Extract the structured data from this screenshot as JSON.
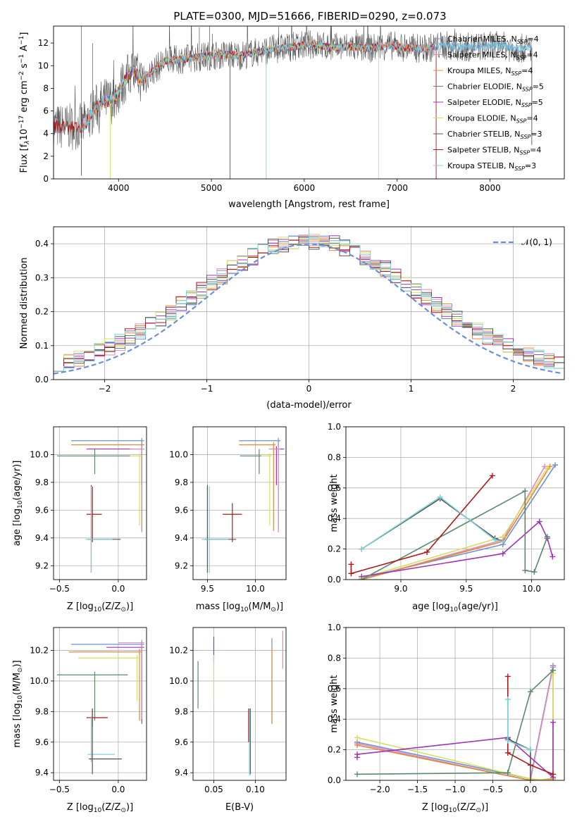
{
  "figure": {
    "title": "PLATE=0300, MJD=51666, FIBERID=0290, z=0.073"
  },
  "chart_data": [
    {
      "id": "spectrum",
      "type": "line",
      "title": "PLATE=0300, MJD=51666, FIBERID=0290, z=0.073",
      "xlabel": "wavelength [Angstrom, rest frame]",
      "ylabel_parts": [
        "Flux [f",
        "λ",
        "10",
        "−17",
        " erg cm",
        "−2",
        " s",
        "−1",
        " A",
        "−1",
        "]"
      ],
      "xlim": [
        3300,
        8800
      ],
      "ylim": [
        0,
        13.5
      ],
      "xticks": [
        4000,
        5000,
        6000,
        7000,
        8000
      ],
      "yticks": [
        0,
        2,
        4,
        6,
        8,
        10,
        12
      ],
      "grid": false,
      "legend_position": "right",
      "continuum": {
        "x": [
          3580,
          3650,
          3750,
          3850,
          3950,
          4050,
          4150,
          4250,
          4350,
          4500,
          4700,
          4900,
          5100,
          5300,
          5500,
          5700,
          5900,
          6100,
          6300,
          6500,
          6700,
          6900,
          7100,
          7300,
          7500,
          7700,
          7900,
          8100,
          8300,
          8450
        ],
        "y": [
          4.6,
          4.9,
          6.3,
          6.9,
          6.9,
          8.5,
          9.6,
          8.7,
          9.4,
          10.4,
          10.6,
          10.8,
          11.0,
          10.9,
          11.2,
          11.5,
          11.7,
          11.9,
          11.6,
          11.7,
          11.5,
          11.8,
          11.6,
          11.5,
          11.8,
          11.6,
          11.7,
          11.8,
          11.5,
          11.6
        ]
      },
      "series": [
        {
          "legend": [
            "Chabrier MILES, N",
            "SSP",
            "=4"
          ],
          "color": "#6b8fd6",
          "x_range": [
            3600,
            8450
          ]
        },
        {
          "legend": [
            "Salpeter MILES, N",
            "SSP",
            "=4"
          ],
          "color": "#e088b8",
          "x_range": [
            3600,
            7400
          ]
        },
        {
          "legend": [
            "Kroupa MILES, N",
            "SSP",
            "=4"
          ],
          "color": "#e08a3c",
          "x_range": [
            3600,
            7400
          ]
        },
        {
          "legend": [
            "Chabrier ELODIE, N",
            "SSP",
            "=5"
          ],
          "color": "#5a8a6a",
          "x_range": [
            3900,
            6800
          ]
        },
        {
          "legend": [
            "Salpeter ELODIE, N",
            "SSP",
            "=5"
          ],
          "color": "#9d35b5",
          "x_range": [
            3900,
            6800
          ]
        },
        {
          "legend": [
            "Kroupa ELODIE, N",
            "SSP",
            "=4"
          ],
          "color": "#d4e060",
          "x_range": [
            3900,
            6800
          ]
        },
        {
          "legend": [
            "Chabrier STELIB, N",
            "SSP",
            "=3"
          ],
          "color": "#555555",
          "x_range": [
            3300,
            8450
          ]
        },
        {
          "legend": [
            "Salpeter STELIB, N",
            "SSP",
            "=4"
          ],
          "color": "#b01818",
          "x_range": [
            3300,
            7400
          ]
        },
        {
          "legend": [
            "Kroupa STELIB, N",
            "SSP",
            "=3"
          ],
          "color": "#7fd0d8",
          "x_range": [
            3580,
            8450
          ]
        }
      ]
    },
    {
      "id": "residuals",
      "type": "histogram",
      "xlabel": "(data-model)/error",
      "ylabel": "Normed distribution",
      "xlim": [
        -2.5,
        2.5
      ],
      "ylim": [
        0,
        0.45
      ],
      "xticks": [
        -2,
        -1,
        0,
        1,
        2
      ],
      "yticks": [
        0.0,
        0.1,
        0.2,
        0.3,
        0.4
      ],
      "grid": true,
      "legend_position": "top-right",
      "bin_width": 0.1,
      "legend": "𝒩(0, 1)",
      "series_colors": [
        "#6b8fd6",
        "#e088b8",
        "#e08a3c",
        "#5a8a6a",
        "#9d35b5",
        "#d4e060",
        "#555555",
        "#b01818",
        "#7fd0d8"
      ]
    },
    {
      "id": "age_vs_Z",
      "type": "errorbar",
      "xlabel": [
        "Z [log",
        "10",
        "(Z/Z",
        "⊙",
        ")]"
      ],
      "ylabel": [
        "age  [log",
        "10",
        "(age/yr)]"
      ],
      "xlim": [
        -0.55,
        0.24
      ],
      "ylim": [
        9.1,
        10.2
      ],
      "xticks": [
        -0.5,
        0.0
      ],
      "yticks": [
        9.2,
        9.4,
        9.6,
        9.8,
        10.0
      ],
      "grid": true,
      "points": [
        {
          "c": "#6b8fd6",
          "x": 0.2,
          "y": 10.1,
          "xl": 0.6,
          "xh": 0.02,
          "yl": 0.64,
          "yh": 0.02
        },
        {
          "c": "#e08a3c",
          "x": 0.2,
          "y": 10.07,
          "xl": 0.6,
          "xh": 0.02,
          "yl": 0.62,
          "yh": 0.02
        },
        {
          "c": "#9d35b5",
          "x": 0.2,
          "y": 10.04,
          "xl": 0.47,
          "xh": 0.02,
          "yl": 0.26,
          "yh": 0.02
        },
        {
          "c": "#e088b8",
          "x": 0.2,
          "y": 10.04,
          "xl": 0.1,
          "xh": 0.02,
          "yl": 0.6,
          "yh": 0.02
        },
        {
          "c": "#d4e060",
          "x": 0.18,
          "y": 9.99,
          "xl": 0.6,
          "xh": 0.02,
          "yl": 0.5,
          "yh": 0.02
        },
        {
          "c": "#5a8a6a",
          "x": -0.2,
          "y": 9.99,
          "xl": 0.32,
          "xh": 0.3,
          "yl": 0.13,
          "yh": 0.05
        },
        {
          "c": "#b01818",
          "x": -0.22,
          "y": 9.57,
          "xl": 0.05,
          "xh": 0.08,
          "yl": 0.2,
          "yh": 0.2
        },
        {
          "c": "#555555",
          "x": -0.23,
          "y": 9.39,
          "xl": 0.03,
          "xh": 0.25,
          "yl": 0.24,
          "yh": 0.39
        },
        {
          "c": "#7fd0d8",
          "x": -0.23,
          "y": 9.39,
          "xl": 0.05,
          "xh": 0.18,
          "yl": 0.24,
          "yh": 0.38
        }
      ]
    },
    {
      "id": "age_vs_mass",
      "type": "errorbar",
      "xlabel": [
        "mass [log",
        "10",
        "(M/M",
        "⊙",
        ")]"
      ],
      "ylabel": "",
      "xlim": [
        9.35,
        10.32
      ],
      "ylim": [
        9.1,
        10.2
      ],
      "xticks": [
        9.5,
        10.0
      ],
      "yticks": [
        9.2,
        9.4,
        9.6,
        9.8,
        10.0
      ],
      "grid": true,
      "points": [
        {
          "c": "#6b8fd6",
          "x": 10.24,
          "y": 10.1,
          "xl": 0.41,
          "xh": 0.02,
          "yl": 0.64,
          "yh": 0.02
        },
        {
          "c": "#e08a3c",
          "x": 10.19,
          "y": 10.07,
          "xl": 0.36,
          "xh": 0.02,
          "yl": 0.62,
          "yh": 0.02
        },
        {
          "c": "#9d35b5",
          "x": 10.22,
          "y": 10.04,
          "xl": 0.02,
          "xh": 0.08,
          "yl": 0.26,
          "yh": 0.02
        },
        {
          "c": "#e088b8",
          "x": 10.24,
          "y": 10.04,
          "xl": 0.1,
          "xh": 0.02,
          "yl": 0.6,
          "yh": 0.02
        },
        {
          "c": "#d4e060",
          "x": 10.15,
          "y": 9.99,
          "xl": 0.3,
          "xh": 0.02,
          "yl": 0.5,
          "yh": 0.02
        },
        {
          "c": "#5a8a6a",
          "x": 10.04,
          "y": 9.99,
          "xl": 0.2,
          "xh": 0.02,
          "yl": 0.13,
          "yh": 0.05
        },
        {
          "c": "#b01818",
          "x": 9.76,
          "y": 9.57,
          "xl": 0.1,
          "xh": 0.1,
          "yl": 0.2,
          "yh": 0.08
        },
        {
          "c": "#555555",
          "x": 9.5,
          "y": 9.39,
          "xl": 0.03,
          "xh": 0.3,
          "yl": 0.24,
          "yh": 0.39
        },
        {
          "c": "#7fd0d8",
          "x": 9.52,
          "y": 9.39,
          "xl": 0.08,
          "xh": 0.2,
          "yl": 0.24,
          "yh": 0.38
        }
      ]
    },
    {
      "id": "weight_vs_age",
      "type": "line",
      "xlabel": [
        "age  [log",
        "10",
        "(age/yr)]"
      ],
      "ylabel": "mass weight",
      "xlim": [
        8.58,
        10.25
      ],
      "ylim": [
        0,
        1.0
      ],
      "xticks": [
        9.0,
        9.5,
        10.0
      ],
      "yticks": [
        0.0,
        0.2,
        0.4,
        0.6,
        0.8,
        1.0
      ],
      "grid": true,
      "series": [
        {
          "c": "#6b8fd6",
          "x": [
            8.7,
            9.78,
            10.18
          ],
          "y": [
            0.01,
            0.23,
            0.75
          ]
        },
        {
          "c": "#e088b8",
          "x": [
            8.7,
            9.78,
            10.1
          ],
          "y": [
            0.0,
            0.26,
            0.74
          ]
        },
        {
          "c": "#e08a3c",
          "x": [
            8.7,
            9.78,
            10.14
          ],
          "y": [
            0.0,
            0.25,
            0.74
          ]
        },
        {
          "c": "#d4e060",
          "x": [
            8.7,
            9.78,
            10.12
          ],
          "y": [
            0.01,
            0.28,
            0.73
          ]
        },
        {
          "c": "#9d35b5",
          "x": [
            8.7,
            9.78,
            10.06,
            10.12,
            10.16
          ],
          "y": [
            0.02,
            0.17,
            0.38,
            0.27,
            0.15
          ]
        },
        {
          "c": "#5a8a6a",
          "x": [
            8.7,
            9.95,
            9.95,
            10.02,
            10.12
          ],
          "y": [
            0.0,
            0.58,
            0.06,
            0.05,
            0.28
          ]
        },
        {
          "c": "#b01818",
          "x": [
            8.62,
            8.62,
            9.2,
            9.7
          ],
          "y": [
            0.1,
            0.04,
            0.18,
            0.68
          ]
        },
        {
          "c": "#555555",
          "x": [
            8.7,
            9.3,
            9.72,
            9.78
          ],
          "y": [
            0.2,
            0.53,
            0.27,
            0.25
          ]
        },
        {
          "c": "#7fd0d8",
          "x": [
            8.7,
            9.3,
            9.72,
            9.78
          ],
          "y": [
            0.2,
            0.54,
            0.26,
            0.25
          ]
        }
      ]
    },
    {
      "id": "mass_vs_Z",
      "type": "errorbar",
      "xlabel": [
        "Z [log",
        "10",
        "(Z/Z",
        "⊙",
        ")]"
      ],
      "ylabel": [
        "mass [log",
        "10",
        "(M/M",
        "⊙",
        ")]"
      ],
      "xlim": [
        -0.55,
        0.24
      ],
      "ylim": [
        9.35,
        10.35
      ],
      "xticks": [
        -0.5,
        0.0
      ],
      "yticks": [
        9.4,
        9.6,
        9.8,
        10.0,
        10.2
      ],
      "grid": true,
      "points": [
        {
          "c": "#6b8fd6",
          "x": 0.2,
          "y": 10.24,
          "xl": 0.6,
          "xh": 0.02,
          "yl": 0.5,
          "yh": 0.02
        },
        {
          "c": "#9d35b5",
          "x": 0.2,
          "y": 10.22,
          "xl": 0.3,
          "xh": 0.02,
          "yl": 0.5,
          "yh": 0.02
        },
        {
          "c": "#e088b8",
          "x": 0.2,
          "y": 10.25,
          "xl": 0.2,
          "xh": 0.02,
          "yl": 0.5,
          "yh": 0.02
        },
        {
          "c": "#e08a3c",
          "x": 0.18,
          "y": 10.19,
          "xl": 0.6,
          "xh": 0.02,
          "yl": 0.45,
          "yh": 0.02
        },
        {
          "c": "#d4e060",
          "x": 0.16,
          "y": 10.15,
          "xl": 0.5,
          "xh": 0.02,
          "yl": 0.28,
          "yh": 0.02
        },
        {
          "c": "#5a8a6a",
          "x": -0.2,
          "y": 10.04,
          "xl": 0.32,
          "xh": 0.28,
          "yl": 0.3,
          "yh": 0.02
        },
        {
          "c": "#b01818",
          "x": -0.22,
          "y": 9.76,
          "xl": 0.05,
          "xh": 0.13,
          "yl": 0.06,
          "yh": 0.06
        },
        {
          "c": "#7fd0d8",
          "x": -0.23,
          "y": 9.52,
          "xl": 0.03,
          "xh": 0.2,
          "yl": 0.05,
          "yh": 0.25
        },
        {
          "c": "#555555",
          "x": -0.22,
          "y": 9.49,
          "xl": 0.03,
          "xh": 0.25,
          "yl": 0.1,
          "yh": 0.3
        }
      ]
    },
    {
      "id": "mass_vs_ebv",
      "type": "errorbar",
      "xlabel": "E(B-V)",
      "ylabel": "",
      "xlim": [
        0.025,
        0.137
      ],
      "ylim": [
        9.35,
        10.35
      ],
      "xticks": [
        0.05,
        0.1
      ],
      "yticks": [
        9.4,
        9.6,
        9.8,
        10.0,
        10.2
      ],
      "grid": true,
      "points": [
        {
          "c": "#e088b8",
          "x": 0.133,
          "y": 10.24,
          "xl": 0,
          "xh": 0,
          "yl": 0.16,
          "yh": 0.09
        },
        {
          "c": "#6b8fd6",
          "x": 0.12,
          "y": 10.22,
          "xl": 0,
          "xh": 0,
          "yl": 0.5,
          "yh": 0.06
        },
        {
          "c": "#e08a3c",
          "x": 0.12,
          "y": 10.18,
          "xl": 0,
          "xh": 0,
          "yl": 0.46,
          "yh": 0.05
        },
        {
          "c": "#9d35b5",
          "x": 0.05,
          "y": 10.22,
          "xl": 0,
          "xh": 0,
          "yl": 0.1,
          "yh": 0.07
        },
        {
          "c": "#d4e060",
          "x": 0.05,
          "y": 10.13,
          "xl": 0,
          "xh": 0,
          "yl": 0.27,
          "yh": 0.04
        },
        {
          "c": "#5a8a6a",
          "x": 0.031,
          "y": 10.04,
          "xl": 0,
          "xh": 0,
          "yl": 0.22,
          "yh": 0.09
        },
        {
          "c": "#b01818",
          "x": 0.092,
          "y": 9.76,
          "xl": 0,
          "xh": 0,
          "yl": 0.16,
          "yh": 0.06
        },
        {
          "c": "#555555",
          "x": 0.094,
          "y": 9.6,
          "xl": 0,
          "xh": 0,
          "yl": 0.21,
          "yh": 0.22
        },
        {
          "c": "#7fd0d8",
          "x": 0.093,
          "y": 9.52,
          "xl": 0,
          "xh": 0,
          "yl": 0.14,
          "yh": 0.3
        }
      ]
    },
    {
      "id": "weight_vs_Z",
      "type": "line",
      "xlabel": [
        "Z [log",
        "10",
        "(Z/Z",
        "⊙",
        ")]"
      ],
      "ylabel": "mass weight",
      "xlim": [
        -2.45,
        0.45
      ],
      "ylim": [
        0,
        1.0
      ],
      "xticks": [
        -2.0,
        -1.5,
        -1.0,
        -0.5,
        0.0
      ],
      "yticks": [
        0.0,
        0.2,
        0.4,
        0.6,
        0.8,
        1.0
      ],
      "grid": true,
      "series": [
        {
          "c": "#6b8fd6",
          "x": [
            -2.3,
            0.0,
            0.3
          ],
          "y": [
            0.25,
            0.01,
            0.75
          ]
        },
        {
          "c": "#e088b8",
          "x": [
            -2.3,
            0.0,
            0.3
          ],
          "y": [
            0.24,
            0.0,
            0.74
          ]
        },
        {
          "c": "#e08a3c",
          "x": [
            -2.3,
            0.0,
            0.3,
            0.3
          ],
          "y": [
            0.23,
            0.0,
            0.01,
            0.72
          ]
        },
        {
          "c": "#d4e060",
          "x": [
            -2.3,
            0.0,
            0.3,
            0.3
          ],
          "y": [
            0.28,
            0.01,
            0.0,
            0.7
          ]
        },
        {
          "c": "#9d35b5",
          "x": [
            -2.3,
            -2.3,
            -0.3,
            0.3,
            0.3
          ],
          "y": [
            0.15,
            0.17,
            0.28,
            0.02,
            0.38
          ]
        },
        {
          "c": "#5a8a6a",
          "x": [
            -2.3,
            -0.3,
            -0.3,
            0.0,
            0.3
          ],
          "y": [
            0.04,
            0.05,
            0.05,
            0.58,
            0.72
          ]
        },
        {
          "c": "#b01818",
          "x": [
            -0.3,
            -0.3,
            0.0,
            0.3
          ],
          "y": [
            0.68,
            0.18,
            0.1,
            0.04
          ]
        },
        {
          "c": "#555555",
          "x": [
            -0.3,
            0.0,
            0.0
          ],
          "y": [
            0.27,
            0.2,
            0.0
          ]
        },
        {
          "c": "#7fd0d8",
          "x": [
            -0.3,
            -0.3,
            0.0
          ],
          "y": [
            0.53,
            0.26,
            0.2
          ]
        }
      ]
    }
  ]
}
